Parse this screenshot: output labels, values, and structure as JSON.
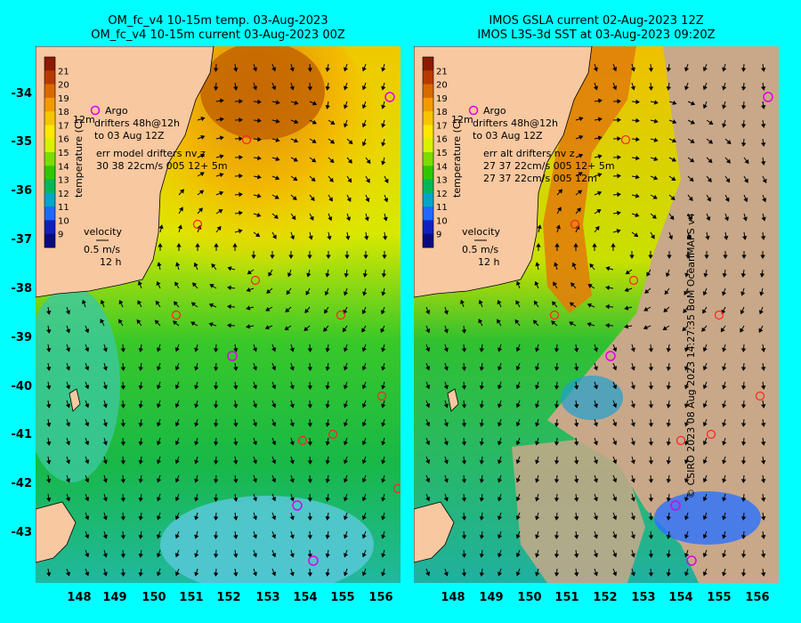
{
  "titles": {
    "left": [
      "OM_fc_v4  10-15m temp. 03-Aug-2023",
      "OM_fc_v4  10-15m current 03-Aug-2023 00Z"
    ],
    "right": [
      "IMOS GSLA current 02-Aug-2023 12Z",
      "IMOS L3S-3d SST at 03-Aug-2023 09:20Z"
    ]
  },
  "colorbar": {
    "label": "temperature (C)",
    "ticks": [
      "21",
      "20",
      "19",
      "18",
      "17",
      "16",
      "15",
      "14",
      "13",
      "12",
      "11",
      "10",
      "9"
    ],
    "colors": [
      "#8b1a00",
      "#b83a00",
      "#d96a00",
      "#f29a00",
      "#f7c400",
      "#ffe800",
      "#d9f100",
      "#7ddc00",
      "#2ec800",
      "#00b85a",
      "#00a6c8",
      "#1f68ff",
      "#1020c0",
      "#0a0a80"
    ]
  },
  "legend_left": {
    "argo": "Argo",
    "drifters_line1": "drifters 48h@12h",
    "drifters_line2": "to 03 Aug 12Z",
    "err_line1": "err model drifters nv z",
    "err_line2": "30 38 22cm/s 005 12+ 5m",
    "velocity": "velocity",
    "vel_scale": "0.5 m/s",
    "vel_time": "12 h",
    "depth": "12m"
  },
  "legend_right": {
    "argo": "Argo",
    "drifters_line1": "drifters 48h@12h",
    "drifters_line2": "to 03 Aug 12Z",
    "err_line1": "err alt drifters nv z",
    "err_line2": "27 37 22cm/s 005 12+ 5m",
    "err_line3": "27 37 22cm/s 005 12m",
    "velocity": "velocity",
    "vel_scale": "0.5 m/s",
    "vel_time": "12 h",
    "depth": "12m"
  },
  "axes": {
    "lat_ticks": [
      "-34",
      "-35",
      "-36",
      "-37",
      "-38",
      "-39",
      "-40",
      "-41",
      "-42",
      "-43"
    ],
    "lon_ticks": [
      "148",
      "149",
      "150",
      "151",
      "152",
      "153",
      "154",
      "155",
      "156"
    ]
  },
  "credit": "© CSIRO 2023  08 Aug 2023 14:27:35 BoM OceanMAPS v4"
}
